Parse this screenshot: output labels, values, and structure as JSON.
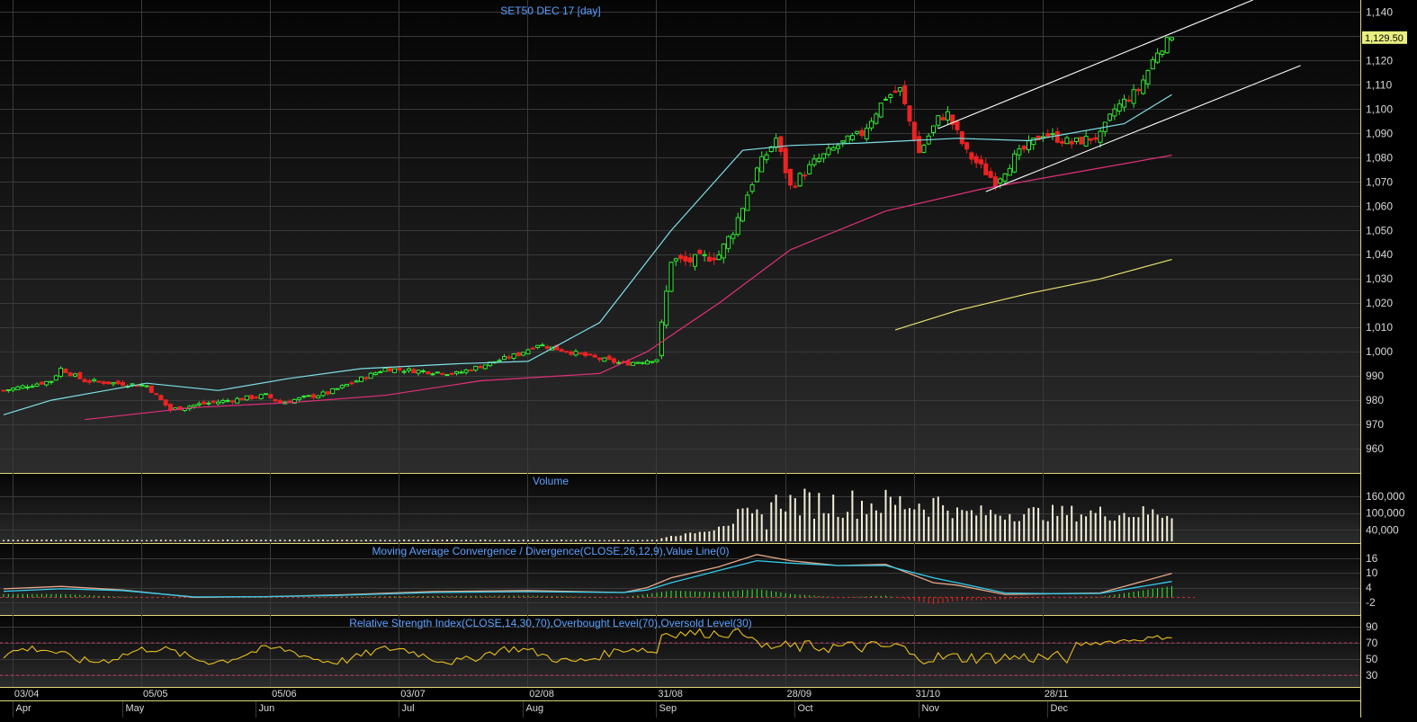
{
  "window": {
    "colors": {
      "background": "#000000",
      "panel_top": "#0a0a0a",
      "panel_bottom": "#2a2a2a",
      "grid": "#3a3a3a",
      "separator": "#e0d77a",
      "axis_text": "#d8d8d8",
      "title_text": "#5aa0ff",
      "up_candle": "#33ee33",
      "down_candle": "#ee2222",
      "ma_short": "#7fe0e8",
      "ma_mid": "#e0307a",
      "ma_long": "#e8e070",
      "trendline": "#ffffff",
      "volume_bar": "#f4efd8",
      "macd_line": "#e8a888",
      "signal_line": "#33ccee",
      "rsi_line": "#e8c020",
      "rsi_levels": "#cc3366",
      "price_tag_bg": "#e8f080"
    }
  },
  "chart_data": [
    {
      "type": "candlestick",
      "panel": "price",
      "title": "SET50 DEC 17   [day]",
      "ylim": [
        950,
        1145
      ],
      "y_ticks": [
        960,
        970,
        980,
        990,
        1000,
        1010,
        1020,
        1030,
        1040,
        1050,
        1060,
        1070,
        1080,
        1090,
        1100,
        1110,
        1120,
        1130,
        1140
      ],
      "y_tick_labels": [
        "960",
        "970",
        "980",
        "990",
        "1,000",
        "1,010",
        "1,020",
        "1,030",
        "1,040",
        "1,050",
        "1,060",
        "1,070",
        "1,080",
        "1,090",
        "1,100",
        "1,110",
        "1,120",
        "1,130",
        "1,140"
      ],
      "last_price_label": "1,129.50",
      "last_price": 1129.5,
      "series": [
        {
          "name": "",
          "style": "ma_short",
          "kind": "moving_average",
          "x": [
            0,
            10,
            30,
            45,
            60,
            75,
            95,
            110,
            125,
            140,
            150,
            155,
            165,
            180,
            200,
            215,
            235,
            245
          ],
          "y": [
            974,
            980,
            987,
            984,
            989,
            993,
            995,
            996,
            1012,
            1050,
            1072,
            1083,
            1085,
            1086,
            1088,
            1087,
            1094,
            1106
          ]
        },
        {
          "name": "",
          "style": "ma_mid",
          "kind": "moving_average",
          "x": [
            17,
            40,
            60,
            80,
            100,
            125,
            135,
            150,
            165,
            185,
            205,
            225,
            245
          ],
          "y": [
            972,
            977,
            979,
            982,
            988,
            991,
            1000,
            1020,
            1042,
            1058,
            1067,
            1074,
            1081
          ]
        },
        {
          "name": "",
          "style": "ma_long",
          "kind": "moving_average",
          "x": [
            187,
            200,
            215,
            230,
            245
          ],
          "y": [
            1009,
            1017,
            1024,
            1030,
            1038
          ]
        }
      ],
      "trendlines": [
        {
          "x": [
            196,
            262
          ],
          "y": [
            1092,
            1145
          ]
        },
        {
          "x": [
            206,
            272
          ],
          "y": [
            1066,
            1118
          ]
        }
      ]
    },
    {
      "type": "bar",
      "panel": "volume",
      "title": "Volume",
      "ylim": [
        0,
        230000
      ],
      "y_ticks": [
        40000,
        100000,
        160000
      ],
      "y_tick_labels": [
        "40,000",
        "100,000",
        "160,000"
      ],
      "series": [
        {
          "name": "",
          "values": []
        }
      ]
    },
    {
      "type": "line",
      "panel": "macd",
      "title": "Moving Average Convergence / Divergence(CLOSE,26,12,9),Value Line(0)",
      "ylim": [
        -5,
        20
      ],
      "y_ticks": [
        -2,
        4,
        10,
        16
      ],
      "y_tick_labels": [
        "-2",
        "4",
        "10",
        "16"
      ],
      "series": [
        {
          "name": "",
          "style": "macd_line",
          "x": [
            0,
            12,
            25,
            40,
            55,
            70,
            90,
            110,
            130,
            135,
            140,
            150,
            158,
            165,
            175,
            185,
            195,
            200,
            210,
            220,
            230,
            245
          ],
          "y": [
            3.5,
            4.5,
            3,
            0,
            0.3,
            1,
            2.4,
            2.8,
            2,
            4,
            8,
            12.5,
            17.5,
            15,
            13,
            13.5,
            6,
            5,
            1.2,
            1.5,
            1.8,
            9.8
          ]
        },
        {
          "name": "",
          "style": "signal_line",
          "x": [
            0,
            12,
            25,
            40,
            55,
            70,
            90,
            110,
            130,
            135,
            140,
            150,
            158,
            165,
            175,
            185,
            195,
            200,
            210,
            220,
            230,
            245
          ],
          "y": [
            2.5,
            3.5,
            2.8,
            0.2,
            0.3,
            0.8,
            2,
            2.3,
            2,
            3,
            6,
            11,
            15,
            14,
            13,
            13,
            8,
            6,
            1.8,
            1.5,
            1.6,
            6.5
          ]
        }
      ]
    },
    {
      "type": "line",
      "panel": "rsi",
      "title": "Relative Strength Index(CLOSE,14,30,70),Overbought Level(70),Oversold Level(30)",
      "ylim": [
        20,
        100
      ],
      "y_ticks": [
        30,
        50,
        70,
        90
      ],
      "y_tick_labels": [
        "30",
        "50",
        "70",
        "90"
      ],
      "levels": [
        70,
        30
      ],
      "series": [
        {
          "name": "",
          "style": "rsi_line",
          "values": []
        }
      ]
    }
  ],
  "x_axis": {
    "date_labels": [
      {
        "label": "03/04",
        "bar": 3
      },
      {
        "label": "05/05",
        "bar": 30
      },
      {
        "label": "05/06",
        "bar": 57
      },
      {
        "label": "03/07",
        "bar": 84
      },
      {
        "label": "02/08",
        "bar": 111
      },
      {
        "label": "31/08",
        "bar": 138
      },
      {
        "label": "28/09",
        "bar": 165
      },
      {
        "label": "31/10",
        "bar": 192
      },
      {
        "label": "28/11",
        "bar": 219
      }
    ],
    "month_labels": [
      {
        "label": "Apr",
        "bar": 3
      },
      {
        "label": "May",
        "bar": 26
      },
      {
        "label": "Jun",
        "bar": 54
      },
      {
        "label": "Jul",
        "bar": 84
      },
      {
        "label": "Aug",
        "bar": 110
      },
      {
        "label": "Sep",
        "bar": 138
      },
      {
        "label": "Oct",
        "bar": 167
      },
      {
        "label": "Nov",
        "bar": 193
      },
      {
        "label": "Dec",
        "bar": 220
      }
    ]
  }
}
